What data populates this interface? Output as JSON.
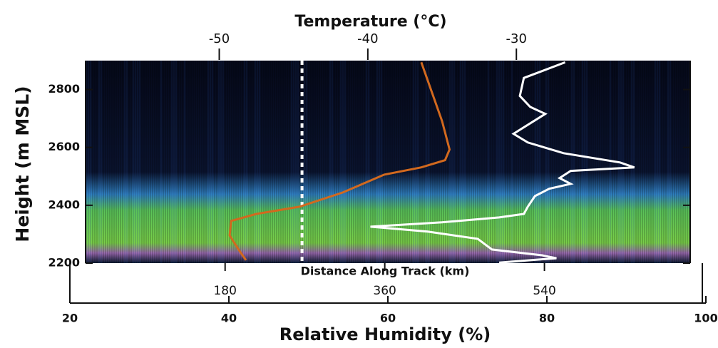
{
  "chart_data": {
    "type": "line",
    "x2label": "Temperature (°C)",
    "x2lim": [
      -59,
      -18.3
    ],
    "x2ticks": [
      -50,
      -40,
      -30
    ],
    "x3label": "Distance Along Track (km)",
    "x3lim": [
      5,
      722
    ],
    "x3ticks": [
      180,
      360,
      540
    ],
    "xlabel": "Relative Humidity (%)",
    "xlim": [
      20,
      100
    ],
    "xticks": [
      20,
      40,
      60,
      80,
      100
    ],
    "ylabel": "Height (m MSL)",
    "ylim": [
      2200,
      2900
    ],
    "yticks": [
      2200,
      2400,
      2600,
      2800
    ],
    "reference_x": 49.2,
    "series": [
      {
        "color": "#d2691e",
        "xaxis": "x2",
        "x": [
          -36.4,
          -35.0,
          -34.5,
          -34.8,
          -36.4,
          -38.9,
          -41.7,
          -44.6,
          -47.5,
          -49.2,
          -49.3,
          -48.7,
          -48.2
        ],
        "values": [
          2894,
          2691,
          2593,
          2556,
          2531,
          2506,
          2444,
          2395,
          2370,
          2346,
          2296,
          2247,
          2210
        ]
      },
      {
        "color": "#ffffff",
        "xaxis": "x",
        "x": [
          82.3,
          77.1,
          76.6,
          77.9,
          79.8,
          75.8,
          77.6,
          82.1,
          89.2,
          91.0,
          83.0,
          81.6,
          83.0,
          80.3,
          78.5,
          77.6,
          77.1,
          74.0,
          66.8,
          57.8,
          65.0,
          71.3,
          73.1,
          79.4,
          81.2,
          74.0
        ],
        "values": [
          2894,
          2840,
          2778,
          2740,
          2716,
          2647,
          2617,
          2580,
          2548,
          2531,
          2519,
          2494,
          2474,
          2457,
          2432,
          2395,
          2370,
          2358,
          2341,
          2326,
          2309,
          2284,
          2247,
          2227,
          2217,
          2202
        ]
      }
    ]
  }
}
